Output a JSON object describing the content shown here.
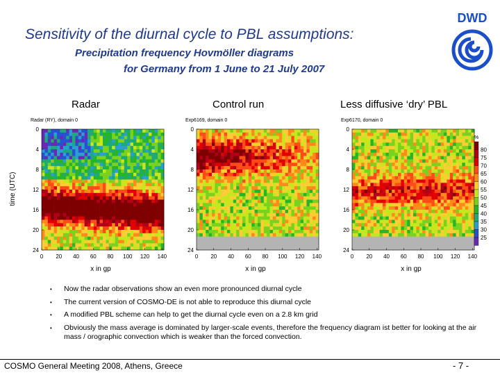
{
  "slide": {
    "title": "Sensitivity of the diurnal cycle to PBL assumptions:",
    "subtitle_line1": "Precipitation frequency Hovmöller diagrams",
    "subtitle_line2": "for Germany from 1 June to 21 July 2007"
  },
  "logo": {
    "text": "DWD",
    "color": "#1a4fc8"
  },
  "panels": [
    {
      "label": "Radar",
      "title": "Radar (RY), domain 0"
    },
    {
      "label": "Control run",
      "title": "Exp6169, domain 0"
    },
    {
      "label": "Less diffusive ‘dry’ PBL",
      "title": "Exp6170, domain 0"
    }
  ],
  "axes": {
    "y_label": "time (UTC)",
    "y_ticks": [
      "0",
      "4",
      "8",
      "12",
      "16",
      "20",
      "24"
    ],
    "x_label": "x in gp",
    "x_ticks": [
      "0",
      "20",
      "40",
      "60",
      "80",
      "100",
      "120",
      "140"
    ]
  },
  "colorbar": {
    "unit": "%",
    "levels": [
      "80",
      "75",
      "70",
      "65",
      "60",
      "55",
      "50",
      "45",
      "40",
      "35",
      "30",
      "25"
    ],
    "colors": [
      "#7f0000",
      "#b3001a",
      "#e00000",
      "#ff4a1a",
      "#ff8a1a",
      "#ffcc33",
      "#c8e61e",
      "#7ad21e",
      "#28b428",
      "#1eaa78",
      "#28a0d2",
      "#2850d2",
      "#6a28b4"
    ]
  },
  "bullets": [
    "Now the radar observations show an even more pronounced diurnal cycle",
    "The current version of COSMO-DE is not able to reproduce this diurnal cycle",
    "A modified PBL scheme can help to get the diurnal cycle even on a 2.8 km grid",
    "Obviously the mass average is dominated by larger-scale events, therefore the frequency diagram ist better for looking at the air mass / orographic convection which is weaker than the forced convection."
  ],
  "footer": {
    "text": "COSMO General Meeting 2008, Athens, Greece",
    "page": "- 7 -"
  }
}
